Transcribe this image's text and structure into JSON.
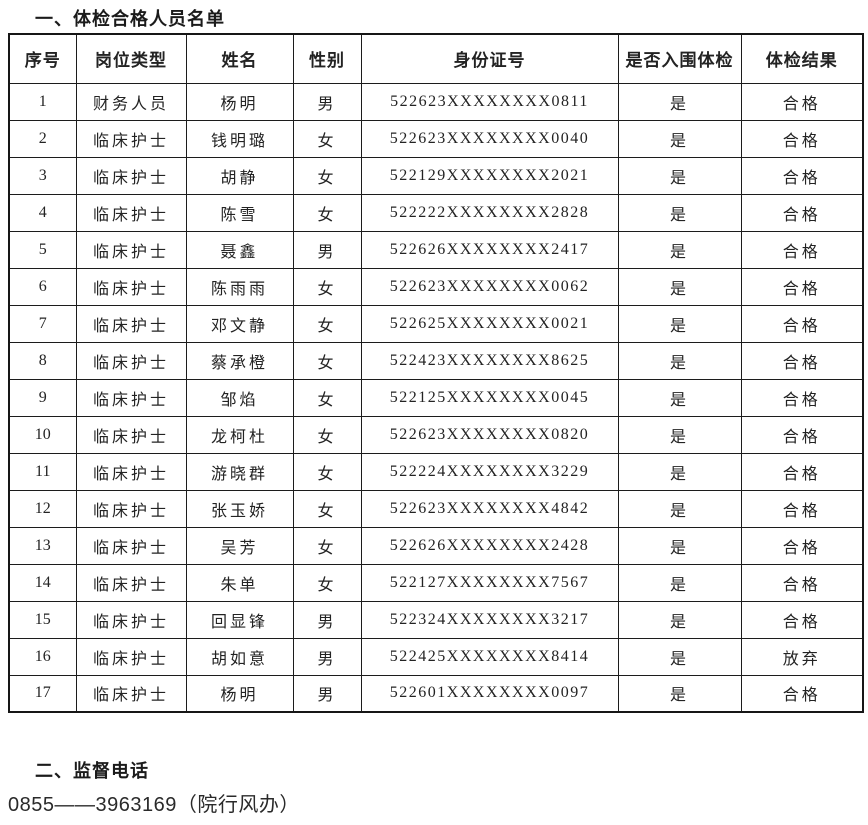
{
  "page": {
    "section1_heading": "一、体检合格人员名单",
    "section2_heading": "二、监督电话",
    "phone_line": "0855——3963169（院行风办）"
  },
  "table": {
    "col_keys": [
      "seq",
      "position",
      "name",
      "gender",
      "id-number",
      "shortlisted",
      "result"
    ],
    "headers": [
      "序号",
      "岗位类型",
      "姓名",
      "性别",
      "身份证号",
      "是否入围体检",
      "体检结果"
    ],
    "rows": [
      [
        "1",
        "财务人员",
        "杨明",
        "男",
        "522623XXXXXXXX0811",
        "是",
        "合格"
      ],
      [
        "2",
        "临床护士",
        "钱明璐",
        "女",
        "522623XXXXXXXX0040",
        "是",
        "合格"
      ],
      [
        "3",
        "临床护士",
        "胡静",
        "女",
        "522129XXXXXXXX2021",
        "是",
        "合格"
      ],
      [
        "4",
        "临床护士",
        "陈雪",
        "女",
        "522222XXXXXXXX2828",
        "是",
        "合格"
      ],
      [
        "5",
        "临床护士",
        "聂鑫",
        "男",
        "522626XXXXXXXX2417",
        "是",
        "合格"
      ],
      [
        "6",
        "临床护士",
        "陈雨雨",
        "女",
        "522623XXXXXXXX0062",
        "是",
        "合格"
      ],
      [
        "7",
        "临床护士",
        "邓文静",
        "女",
        "522625XXXXXXXX0021",
        "是",
        "合格"
      ],
      [
        "8",
        "临床护士",
        "蔡承橙",
        "女",
        "522423XXXXXXXX8625",
        "是",
        "合格"
      ],
      [
        "9",
        "临床护士",
        "邹焰",
        "女",
        "522125XXXXXXXX0045",
        "是",
        "合格"
      ],
      [
        "10",
        "临床护士",
        "龙柯杜",
        "女",
        "522623XXXXXXXX0820",
        "是",
        "合格"
      ],
      [
        "11",
        "临床护士",
        "游晓群",
        "女",
        "522224XXXXXXXX3229",
        "是",
        "合格"
      ],
      [
        "12",
        "临床护士",
        "张玉娇",
        "女",
        "522623XXXXXXXX4842",
        "是",
        "合格"
      ],
      [
        "13",
        "临床护士",
        "吴芳",
        "女",
        "522626XXXXXXXX2428",
        "是",
        "合格"
      ],
      [
        "14",
        "临床护士",
        "朱单",
        "女",
        "522127XXXXXXXX7567",
        "是",
        "合格"
      ],
      [
        "15",
        "临床护士",
        "回显锋",
        "男",
        "522324XXXXXXXX3217",
        "是",
        "合格"
      ],
      [
        "16",
        "临床护士",
        "胡如意",
        "男",
        "522425XXXXXXXX8414",
        "是",
        "放弃"
      ],
      [
        "17",
        "临床护士",
        "杨明",
        "男",
        "522601XXXXXXXX0097",
        "是",
        "合格"
      ]
    ]
  },
  "colors": {
    "text": "#202020",
    "border": "#1c1c1c",
    "background": "#ffffff"
  }
}
